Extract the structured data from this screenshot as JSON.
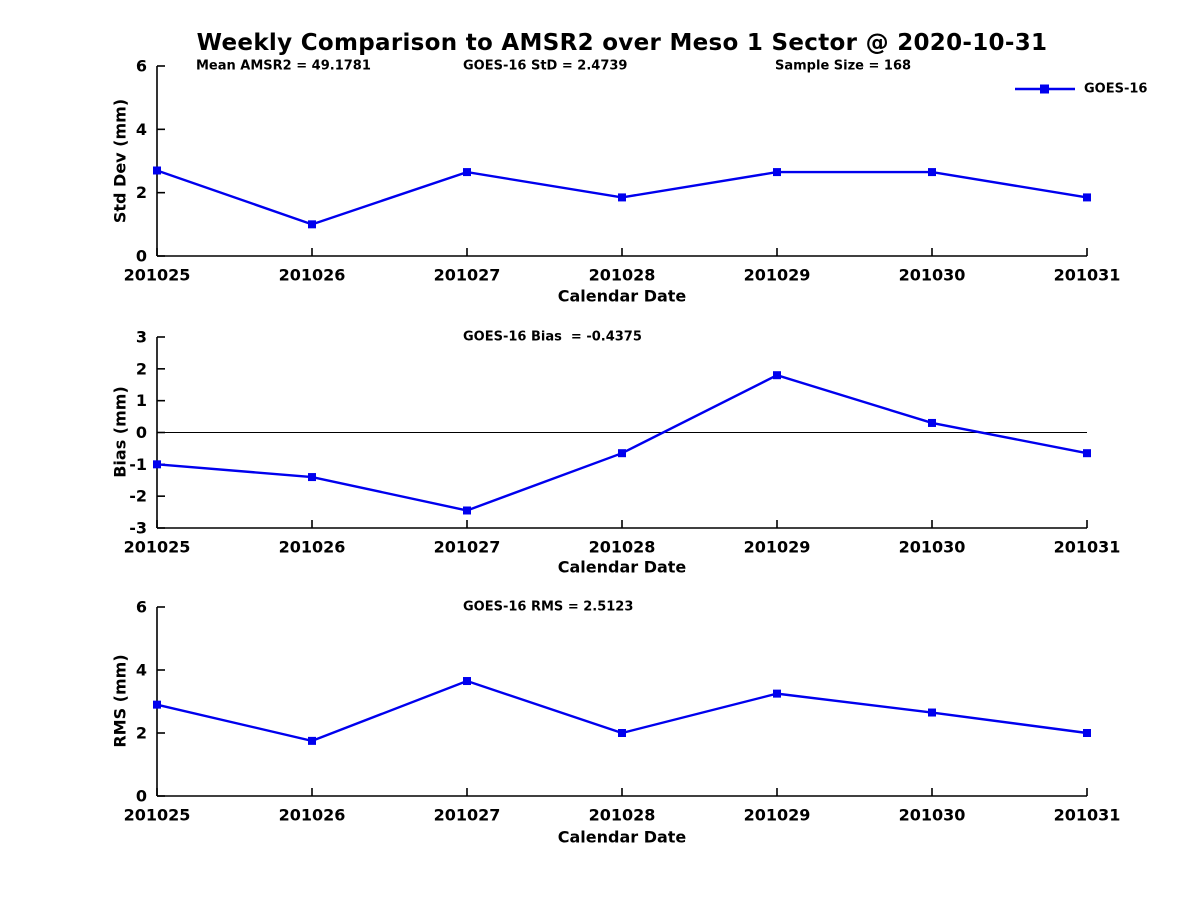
{
  "figure": {
    "title": "Weekly Comparison to AMSR2 over Meso 1 Sector @ 2020-10-31",
    "colors": {
      "line": "#0000EE",
      "axis": "#000000",
      "text": "#000000",
      "background": "#FFFFFF"
    }
  },
  "chart_data": [
    {
      "type": "line",
      "panel": "top",
      "annotations": [
        "Mean AMSR2 = 49.1781",
        "GOES-16 StD = 2.4739",
        "Sample Size = 168"
      ],
      "categories": [
        "201025",
        "201026",
        "201027",
        "201028",
        "201029",
        "201030",
        "201031"
      ],
      "series": [
        {
          "name": "GOES-16",
          "values": [
            2.7,
            1.0,
            2.65,
            1.85,
            2.65,
            2.65,
            1.85
          ]
        }
      ],
      "xlabel": "Calendar Date",
      "ylabel": "Std Dev (mm)",
      "ylim": [
        0,
        6
      ],
      "yticks": [
        0,
        2,
        4,
        6
      ],
      "grid": false,
      "zero_line": false,
      "legend": {
        "label": "GOES-16",
        "position": "top-right"
      }
    },
    {
      "type": "line",
      "panel": "middle",
      "annotations": [
        "GOES-16 Bias  = -0.4375"
      ],
      "categories": [
        "201025",
        "201026",
        "201027",
        "201028",
        "201029",
        "201030",
        "201031"
      ],
      "series": [
        {
          "name": "GOES-16",
          "values": [
            -1.0,
            -1.4,
            -2.45,
            -0.65,
            1.8,
            0.3,
            -0.65
          ]
        }
      ],
      "xlabel": "Calendar Date",
      "ylabel": "Bias (mm)",
      "ylim": [
        -3,
        3
      ],
      "yticks": [
        -3,
        -2,
        -1,
        0,
        1,
        2,
        3
      ],
      "grid": false,
      "zero_line": true
    },
    {
      "type": "line",
      "panel": "bottom",
      "annotations": [
        "GOES-16 RMS = 2.5123"
      ],
      "categories": [
        "201025",
        "201026",
        "201027",
        "201028",
        "201029",
        "201030",
        "201031"
      ],
      "series": [
        {
          "name": "GOES-16",
          "values": [
            2.9,
            1.75,
            3.65,
            2.0,
            3.25,
            2.65,
            2.0
          ]
        }
      ],
      "xlabel": "Calendar Date",
      "ylabel": "RMS (mm)",
      "ylim": [
        0,
        6
      ],
      "yticks": [
        0,
        2,
        4,
        6
      ],
      "grid": false,
      "zero_line": false
    }
  ]
}
